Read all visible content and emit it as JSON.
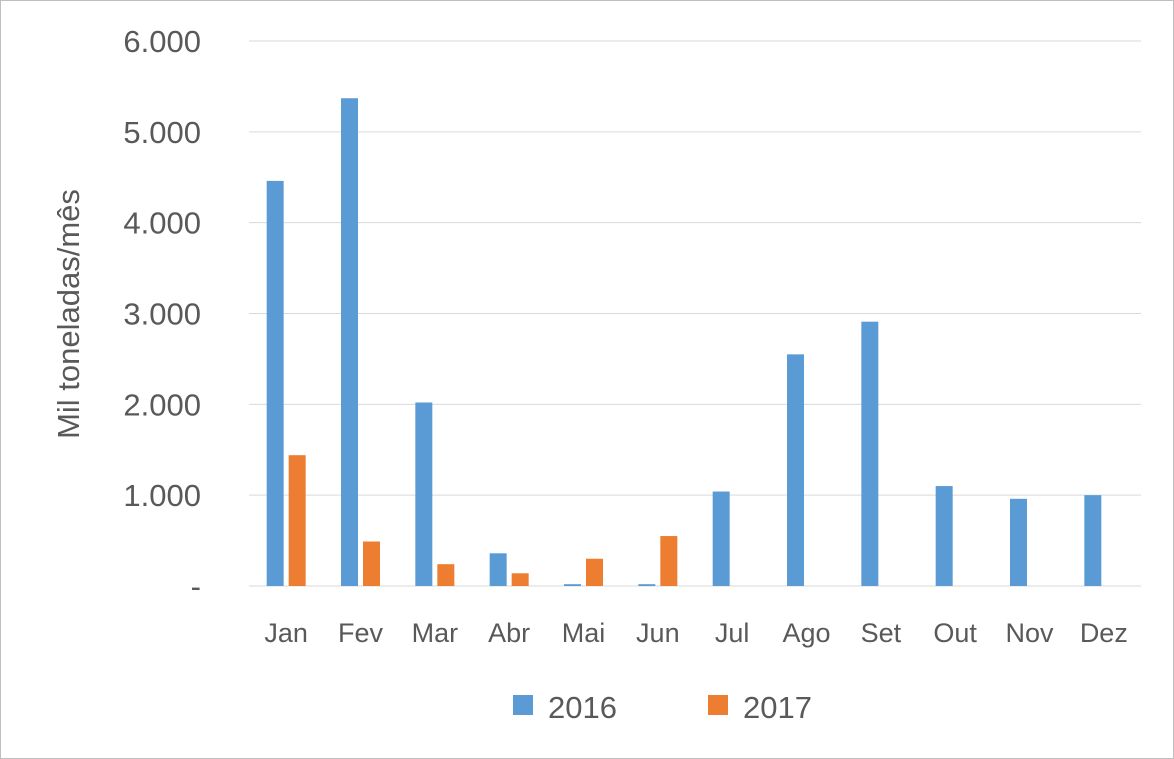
{
  "chart_data": {
    "type": "bar",
    "categories": [
      "Jan",
      "Fev",
      "Mar",
      "Abr",
      "Mai",
      "Jun",
      "Jul",
      "Ago",
      "Set",
      "Out",
      "Nov",
      "Dez"
    ],
    "series": [
      {
        "name": "2016",
        "color": "#5b9bd5",
        "values": [
          4460,
          5370,
          2020,
          360,
          20,
          20,
          1040,
          2550,
          2910,
          1100,
          960,
          1000
        ]
      },
      {
        "name": "2017",
        "color": "#ed7d31",
        "values": [
          1440,
          490,
          240,
          140,
          300,
          550,
          null,
          null,
          null,
          null,
          null,
          null
        ]
      }
    ],
    "xlabel": "",
    "ylabel": "Mil toneladas/mês",
    "ylim": [
      0,
      6000
    ],
    "yticks": [
      0,
      1000,
      2000,
      3000,
      4000,
      5000,
      6000
    ],
    "ytick_labels": [
      "-",
      "1.000",
      "2.000",
      "3.000",
      "4.000",
      "5.000",
      "6.000"
    ],
    "grid": true,
    "legend_position": "bottom"
  }
}
